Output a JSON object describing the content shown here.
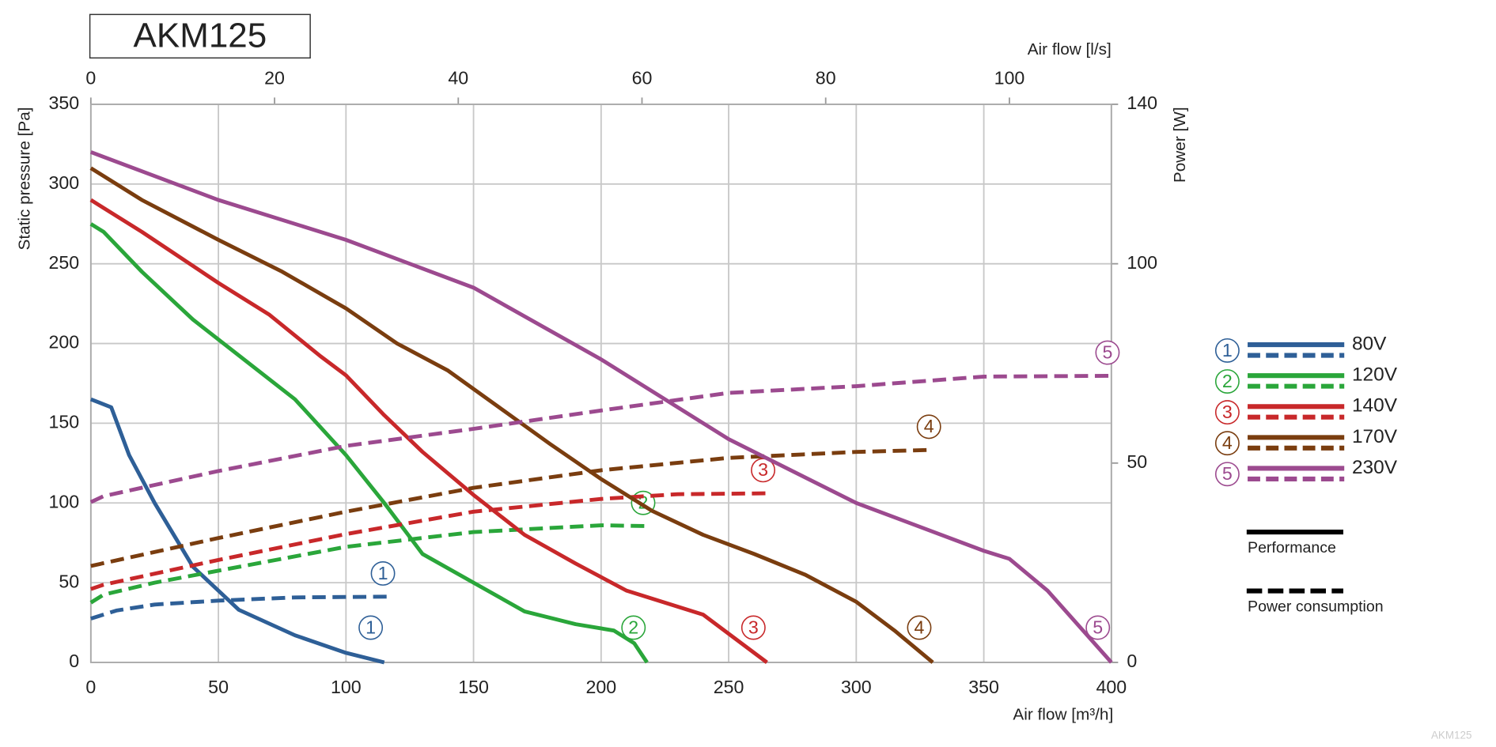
{
  "chart_data": {
    "type": "line",
    "title": "AKM125",
    "watermark": "AKM125",
    "x_label": "Air flow [m³/h]",
    "x2_label": "Air flow [l/s]",
    "y_label": "Static pressure [Pa]",
    "y2_label": "Power [W]",
    "xlim": [
      0,
      400
    ],
    "xticks": [
      0,
      50,
      100,
      150,
      200,
      250,
      300,
      350,
      400
    ],
    "x2lim": [
      0,
      111.1
    ],
    "x2ticks": [
      0,
      20,
      40,
      60,
      80,
      100
    ],
    "ylim": [
      0,
      350
    ],
    "yticks": [
      0,
      50,
      100,
      150,
      200,
      250,
      300,
      350
    ],
    "y2lim": [
      0,
      140
    ],
    "y2ticks": [
      0,
      50,
      100,
      140
    ],
    "grid": true,
    "legend_styles": {
      "solid": "Performance",
      "dashed": "Power consumption"
    },
    "series": [
      {
        "name": "80V",
        "number": "1",
        "color": "#2e5f97",
        "performance": {
          "x": [
            0,
            8,
            15,
            25,
            40,
            58,
            80,
            100,
            115
          ],
          "values": [
            165,
            160,
            130,
            100,
            60,
            33,
            17,
            6,
            0
          ]
        },
        "power": {
          "axis": "y2",
          "x": [
            0,
            10,
            25,
            50,
            80,
            116
          ],
          "values": [
            11,
            13,
            14.5,
            15.5,
            16.3,
            16.5
          ]
        }
      },
      {
        "name": "120V",
        "number": "2",
        "color": "#2aa63a",
        "performance": {
          "x": [
            0,
            5,
            20,
            40,
            60,
            80,
            100,
            115,
            130,
            150,
            170,
            190,
            205,
            213,
            218
          ],
          "values": [
            275,
            270,
            245,
            215,
            190,
            165,
            130,
            100,
            68,
            50,
            32,
            24,
            20,
            12,
            0
          ]
        },
        "power": {
          "axis": "y2",
          "x": [
            0,
            5,
            25,
            50,
            100,
            150,
            200,
            218
          ],
          "values": [
            15,
            17,
            20,
            23,
            29,
            32.7,
            34.4,
            34.2
          ]
        }
      },
      {
        "name": "140V",
        "number": "3",
        "color": "#c8282a",
        "performance": {
          "x": [
            0,
            20,
            50,
            70,
            90,
            100,
            115,
            130,
            150,
            170,
            190,
            210,
            240,
            265
          ],
          "values": [
            290,
            270,
            238,
            218,
            192,
            180,
            155,
            132,
            105,
            80,
            62,
            45,
            30,
            0
          ]
        },
        "power": {
          "axis": "y2",
          "x": [
            0,
            5,
            50,
            100,
            150,
            200,
            230,
            265
          ],
          "values": [
            18.4,
            19.5,
            25.7,
            32.2,
            37.8,
            41,
            42.2,
            42.4
          ]
        }
      },
      {
        "name": "170V",
        "number": "4",
        "color": "#7a3d0f",
        "performance": {
          "x": [
            0,
            20,
            50,
            75,
            100,
            120,
            140,
            160,
            180,
            200,
            220,
            240,
            260,
            280,
            300,
            315,
            330
          ],
          "values": [
            310,
            290,
            265,
            245,
            222,
            200,
            183,
            160,
            137,
            115,
            95,
            80,
            68,
            55,
            38,
            20,
            0
          ]
        },
        "power": {
          "axis": "y2",
          "x": [
            0,
            50,
            100,
            150,
            200,
            250,
            300,
            330
          ],
          "values": [
            24.2,
            31.2,
            37.8,
            43.8,
            48.2,
            51.3,
            52.8,
            53.3
          ]
        }
      },
      {
        "name": "230V",
        "number": "5",
        "color": "#9c4a8f",
        "performance": {
          "x": [
            0,
            50,
            100,
            150,
            200,
            225,
            250,
            300,
            350,
            360,
            375,
            400
          ],
          "values": [
            320,
            290,
            265,
            235,
            190,
            165,
            140,
            100,
            70,
            65,
            45,
            0
          ]
        },
        "power": {
          "axis": "y2",
          "x": [
            0,
            5,
            50,
            100,
            150,
            200,
            250,
            300,
            350,
            400
          ],
          "values": [
            40.2,
            41.7,
            48,
            54.3,
            58.6,
            63.2,
            67.6,
            69.3,
            71.7,
            71.9
          ]
        }
      }
    ]
  }
}
